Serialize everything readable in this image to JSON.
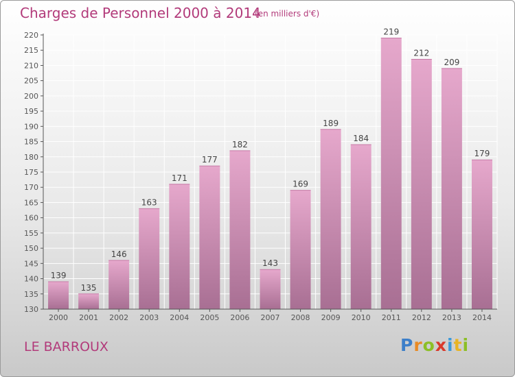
{
  "title": "Charges de Personnel 2000 à 2014",
  "subtitle": "(en milliers d'€)",
  "commune": "LE BARROUX",
  "logo": {
    "letters": [
      "P",
      "r",
      "o",
      "x",
      "i",
      "t",
      "i"
    ],
    "colors": [
      "#3d7fc9",
      "#e88a25",
      "#8cbf26",
      "#d9392b",
      "#3d9ad9",
      "#e8b425",
      "#8cbf26"
    ]
  },
  "colors": {
    "text": "#b23a7a",
    "bar_top": "#e6a8cc",
    "bar_bottom": "#a86f93",
    "axis": "#555555"
  },
  "chart_data": {
    "type": "bar",
    "title": "Charges de Personnel 2000 à 2014",
    "subtitle": "(en milliers d'€)",
    "categories": [
      "2000",
      "2001",
      "2002",
      "2003",
      "2004",
      "2005",
      "2006",
      "2007",
      "2008",
      "2009",
      "2010",
      "2011",
      "2012",
      "2013",
      "2014"
    ],
    "values": [
      139,
      135,
      146,
      163,
      171,
      177,
      182,
      143,
      169,
      189,
      184,
      219,
      212,
      209,
      179
    ],
    "ylim": [
      130,
      220
    ],
    "yticks": [
      130,
      135,
      140,
      145,
      150,
      155,
      160,
      165,
      170,
      175,
      180,
      185,
      190,
      195,
      200,
      205,
      210,
      215,
      220
    ],
    "grid": true,
    "data_labels": true
  }
}
